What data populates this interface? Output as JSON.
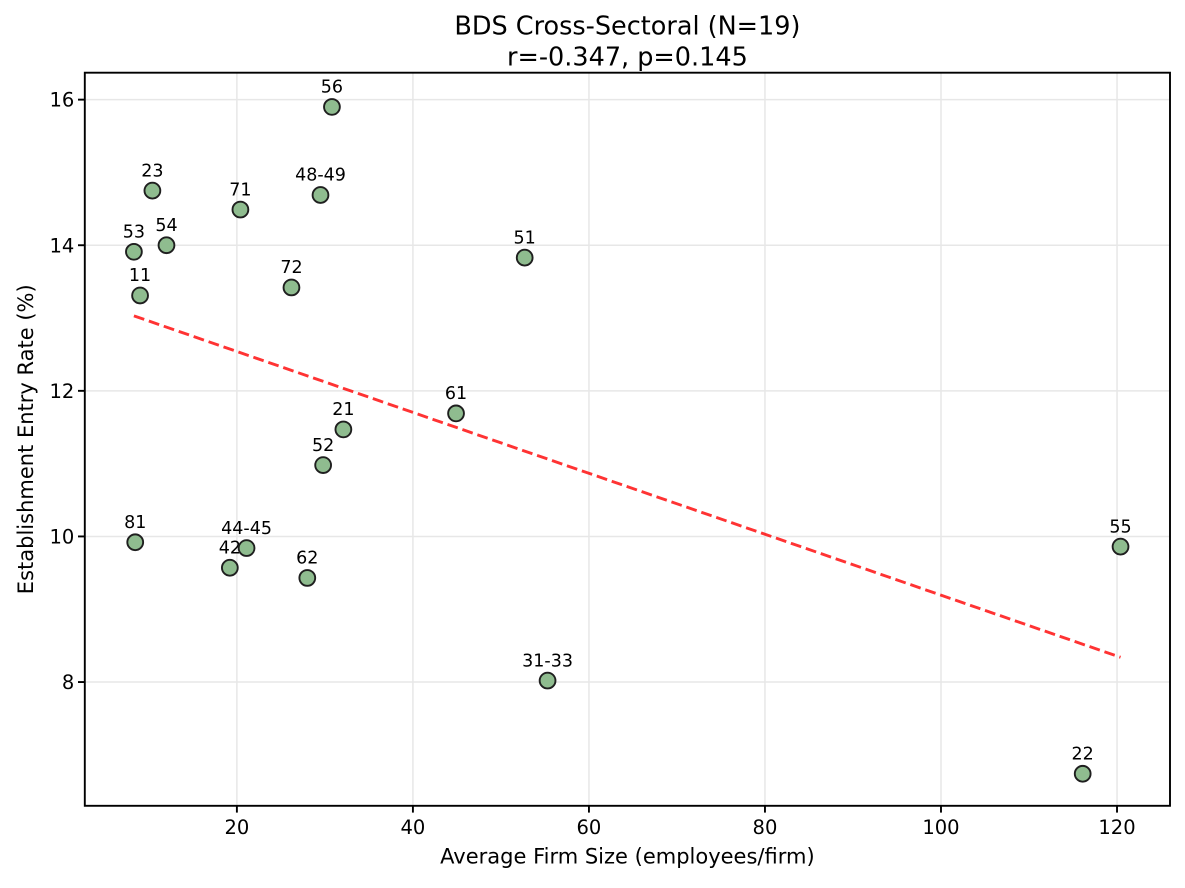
{
  "chart_data": {
    "type": "scatter",
    "title": "BDS Cross-Sectoral (N=19)",
    "subtitle": "r=-0.347, p=0.145",
    "xlabel": "Average Firm Size (employees/firm)",
    "ylabel": "Establishment Entry Rate (%)",
    "xlim": [
      2.72,
      126.02
    ],
    "ylim": [
      6.3,
      16.37
    ],
    "xticks": [
      20,
      40,
      60,
      80,
      100,
      120
    ],
    "yticks": [
      8,
      10,
      12,
      14,
      16
    ],
    "grid": true,
    "legend": false,
    "points": [
      {
        "label": "11",
        "x": 9.0,
        "y": 13.31
      },
      {
        "label": "21",
        "x": 32.1,
        "y": 11.47
      },
      {
        "label": "22",
        "x": 116.1,
        "y": 6.74
      },
      {
        "label": "23",
        "x": 10.4,
        "y": 14.75
      },
      {
        "label": "31-33",
        "x": 55.3,
        "y": 8.02
      },
      {
        "label": "42",
        "x": 19.2,
        "y": 9.57
      },
      {
        "label": "44-45",
        "x": 21.1,
        "y": 9.84
      },
      {
        "label": "48-49",
        "x": 29.5,
        "y": 14.69
      },
      {
        "label": "51",
        "x": 52.7,
        "y": 13.83
      },
      {
        "label": "52",
        "x": 29.8,
        "y": 10.98
      },
      {
        "label": "53",
        "x": 8.3,
        "y": 13.91
      },
      {
        "label": "54",
        "x": 12.0,
        "y": 14.0
      },
      {
        "label": "55",
        "x": 120.4,
        "y": 9.86
      },
      {
        "label": "56",
        "x": 30.8,
        "y": 15.9
      },
      {
        "label": "61",
        "x": 44.9,
        "y": 11.69
      },
      {
        "label": "62",
        "x": 28.0,
        "y": 9.43
      },
      {
        "label": "71",
        "x": 20.4,
        "y": 14.49
      },
      {
        "label": "72",
        "x": 26.2,
        "y": 13.42
      },
      {
        "label": "81",
        "x": 8.45,
        "y": 9.92
      }
    ],
    "trend_line": {
      "x1": 8.3,
      "y1": 13.03,
      "x2": 120.4,
      "y2": 8.34,
      "style": "dashed"
    },
    "colors": {
      "point_fill": "#8fbc8f",
      "point_edge": "#1f1f1f",
      "trend": "#ff0000",
      "grid": "#e7e7e7",
      "axis": "#000000",
      "background": "#ffffff"
    }
  }
}
